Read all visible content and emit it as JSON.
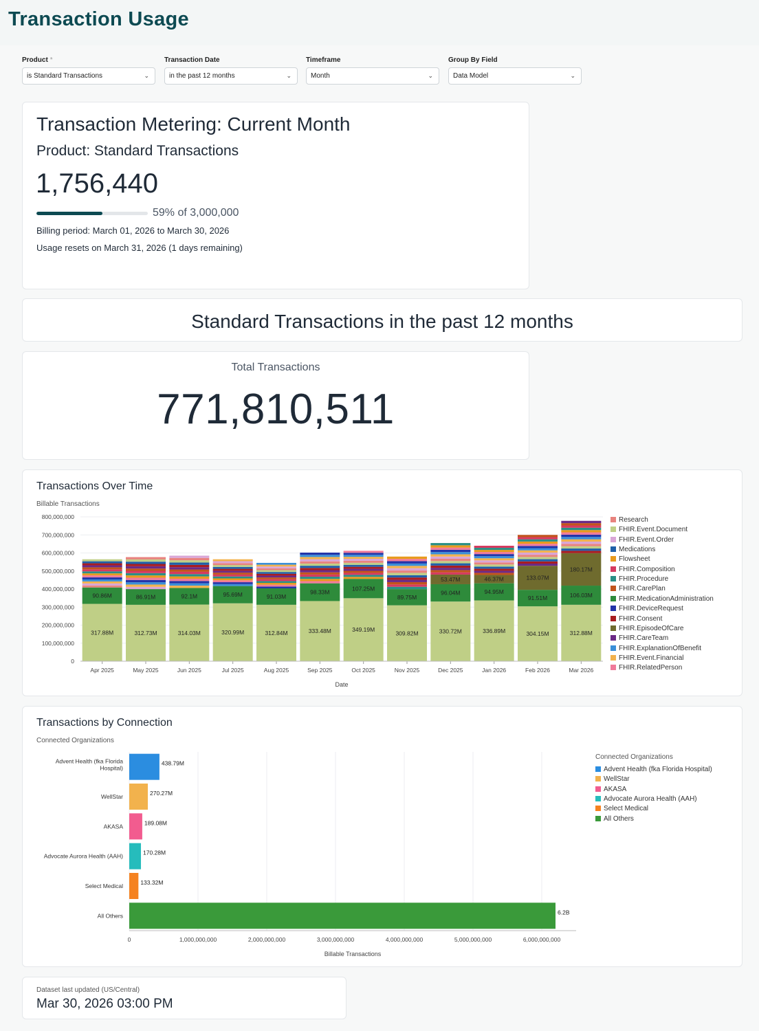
{
  "page": {
    "title": "Transaction Usage"
  },
  "filters": [
    {
      "label": "Product",
      "required": "*",
      "value": "is Standard Transactions"
    },
    {
      "label": "Transaction Date",
      "required": "",
      "value": "in the past 12 months"
    },
    {
      "label": "Timeframe",
      "required": "",
      "value": "Month"
    },
    {
      "label": "Group By Field",
      "required": "",
      "value": "Data Model"
    }
  ],
  "metering": {
    "title": "Transaction Metering: Current Month",
    "product": "Product: Standard Transactions",
    "value": "1,756,440",
    "progress_fraction": 0.59,
    "progress_text": "59% of 3,000,000",
    "billing": "Billing period: March 01, 2026 to March 30, 2026",
    "resets": "Usage resets on March 31, 2026 (1 days remaining)",
    "accent": "#0d4a52"
  },
  "section": {
    "title": "Standard Transactions in the past 12 months"
  },
  "total": {
    "label": "Total Transactions",
    "value": "771,810,511"
  },
  "charts": {
    "over_time": {
      "title": "Transactions Over Time",
      "subtitle": "Billable Transactions"
    },
    "by_connection": {
      "title": "Transactions by Connection",
      "subtitle": "Connected Organizations",
      "legend_title": "Connected Organizations"
    }
  },
  "chart_data": [
    {
      "type": "bar",
      "stacked": true,
      "title": "Transactions Over Time",
      "ylabel": "Billable Transactions",
      "xlabel": "Date",
      "ylim": [
        0,
        800000000
      ],
      "yticks": [
        "0",
        "100,000,000",
        "200,000,000",
        "300,000,000",
        "400,000,000",
        "500,000,000",
        "600,000,000",
        "700,000,000",
        "800,000,000"
      ],
      "ytick_values": [
        0,
        100000000,
        200000000,
        300000000,
        400000000,
        500000000,
        600000000,
        700000000,
        800000000
      ],
      "categories": [
        "Apr 2025",
        "May 2025",
        "Jun 2025",
        "Jul 2025",
        "Aug 2025",
        "Sep 2025",
        "Oct 2025",
        "Nov 2025",
        "Dec 2025",
        "Jan 2026",
        "Feb 2026",
        "Mar 2026"
      ],
      "totals": [
        565000000,
        577000000,
        585000000,
        565000000,
        545000000,
        602000000,
        612000000,
        580000000,
        655000000,
        640000000,
        700000000,
        778000000
      ],
      "legend_position": "right",
      "series": [
        {
          "name": "Research",
          "color": "#e8837e",
          "values": [
            null,
            null,
            null,
            null,
            null,
            null,
            null,
            null,
            null,
            null,
            null,
            null
          ]
        },
        {
          "name": "FHIR.Event.Document",
          "color": "#bfcf86",
          "values": [
            317880000,
            312730000,
            314030000,
            320990000,
            312840000,
            333480000,
            349190000,
            309820000,
            330720000,
            336890000,
            304150000,
            312880000
          ],
          "labels": [
            "317.88M",
            "312.73M",
            "314.03M",
            "320.99M",
            "312.84M",
            "333.48M",
            "349.19M",
            "309.82M",
            "330.72M",
            "336.89M",
            "304.15M",
            "312.88M"
          ]
        },
        {
          "name": "FHIR.Event.Order",
          "color": "#d9a6d6",
          "values": [
            null,
            null,
            null,
            null,
            null,
            null,
            null,
            null,
            null,
            null,
            null,
            null
          ]
        },
        {
          "name": "Medications",
          "color": "#1f5fa8",
          "values": [
            null,
            null,
            null,
            null,
            null,
            null,
            null,
            null,
            null,
            null,
            null,
            null
          ]
        },
        {
          "name": "Flowsheet",
          "color": "#e89a1c",
          "values": [
            null,
            null,
            null,
            null,
            null,
            null,
            null,
            null,
            null,
            null,
            null,
            null
          ]
        },
        {
          "name": "FHIR.Composition",
          "color": "#d63a5f",
          "values": [
            null,
            null,
            null,
            null,
            null,
            null,
            null,
            null,
            null,
            null,
            null,
            null
          ]
        },
        {
          "name": "FHIR.Procedure",
          "color": "#2a8f86",
          "values": [
            null,
            null,
            null,
            null,
            null,
            null,
            null,
            null,
            null,
            null,
            null,
            null
          ]
        },
        {
          "name": "FHIR.CarePlan",
          "color": "#c2541c",
          "values": [
            null,
            null,
            null,
            null,
            null,
            null,
            null,
            null,
            null,
            null,
            null,
            null
          ]
        },
        {
          "name": "FHIR.MedicationAdministration",
          "color": "#2e8b3b",
          "values": [
            90860000,
            86910000,
            92100000,
            95690000,
            91030000,
            98330000,
            107250000,
            89750000,
            96040000,
            94950000,
            91510000,
            106030000
          ],
          "labels": [
            "90.86M",
            "86.91M",
            "92.1M",
            "95.69M",
            "91.03M",
            "98.33M",
            "107.25M",
            "89.75M",
            "96.04M",
            "94.95M",
            "91.51M",
            "106.03M"
          ]
        },
        {
          "name": "FHIR.DeviceRequest",
          "color": "#2234a8",
          "values": [
            null,
            null,
            null,
            null,
            null,
            null,
            null,
            null,
            null,
            null,
            null,
            null
          ]
        },
        {
          "name": "FHIR.Consent",
          "color": "#a81d20",
          "values": [
            null,
            null,
            null,
            null,
            null,
            null,
            null,
            null,
            null,
            null,
            null,
            null
          ]
        },
        {
          "name": "FHIR.EpisodeOfCare",
          "color": "#6f6b2e",
          "values": [
            null,
            null,
            null,
            null,
            null,
            null,
            null,
            null,
            53470000,
            46370000,
            133070000,
            180170000
          ],
          "labels": [
            "",
            "",
            "",
            "",
            "",
            "",
            "",
            "",
            "53.47M",
            "46.37M",
            "133.07M",
            "180.17M"
          ]
        },
        {
          "name": "FHIR.CareTeam",
          "color": "#6b2a86",
          "values": [
            null,
            null,
            null,
            null,
            null,
            null,
            null,
            null,
            null,
            null,
            null,
            null
          ]
        },
        {
          "name": "FHIR.ExplanationOfBenefit",
          "color": "#3a8fd8",
          "values": [
            null,
            null,
            null,
            null,
            null,
            null,
            null,
            null,
            null,
            null,
            null,
            null
          ]
        },
        {
          "name": "FHIR.Event.Financial",
          "color": "#f2b24d",
          "values": [
            null,
            null,
            null,
            null,
            null,
            null,
            null,
            null,
            null,
            null,
            null,
            null
          ]
        },
        {
          "name": "FHIR.RelatedPerson",
          "color": "#f07a9a",
          "values": [
            null,
            null,
            null,
            null,
            null,
            null,
            null,
            null,
            null,
            null,
            null,
            null
          ]
        }
      ]
    },
    {
      "type": "bar",
      "orientation": "horizontal",
      "title": "Transactions by Connection",
      "ylabel": "Connected Organizations",
      "xlabel": "Billable Transactions",
      "xlim": [
        0,
        6500000000
      ],
      "xticks": [
        "0",
        "1,000,000,000",
        "2,000,000,000",
        "3,000,000,000",
        "4,000,000,000",
        "5,000,000,000",
        "6,000,000,000"
      ],
      "xtick_values": [
        0,
        1000000000,
        2000000000,
        3000000000,
        4000000000,
        5000000000,
        6000000000
      ],
      "categories": [
        "Advent Health (fka Florida Hospital)",
        "WellStar",
        "AKASA",
        "Advocate Aurora Health (AAH)",
        "Select Medical",
        "All Others"
      ],
      "values": [
        438790000,
        270270000,
        189080000,
        170280000,
        133320000,
        6200000000
      ],
      "labels": [
        "438.79M",
        "270.27M",
        "189.08M",
        "170.28M",
        "133.32M",
        "6.2B"
      ],
      "colors": [
        "#2b8de0",
        "#f2b24d",
        "#f25c8f",
        "#26bcbc",
        "#f58220",
        "#3a9a3a"
      ],
      "legend_title": "Connected Organizations",
      "legend_position": "right"
    }
  ],
  "footer": {
    "label": "Dataset last updated (US/Central)",
    "value": "Mar 30, 2026 03:00 PM"
  }
}
